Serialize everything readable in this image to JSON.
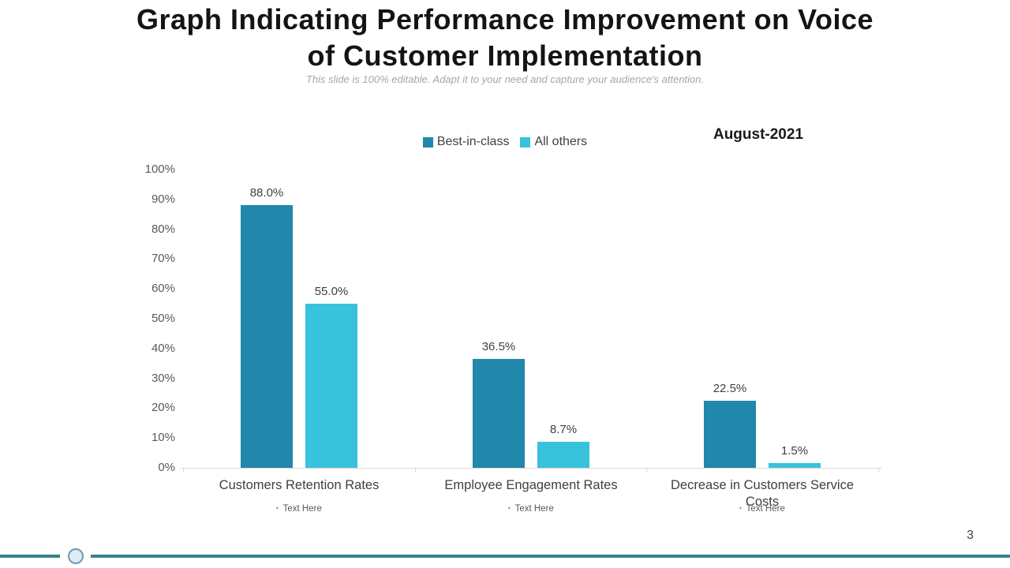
{
  "slide": {
    "title_lines": {
      "0": "Graph Indicating Performance Improvement on Voice",
      "1": "of Customer Implementation"
    },
    "subtitle": "This slide is 100% editable. Adapt it to your need and capture your audience's attention.",
    "page_number": "3"
  },
  "chart_data": {
    "type": "bar",
    "title": "August-2021",
    "categories": [
      "Customers Retention Rates",
      "Employee Engagement Rates",
      "Decrease in Customers Service Costs"
    ],
    "category_notes": [
      "Text Here",
      "Text Here",
      "Text Here"
    ],
    "note_bullet": "▪",
    "series": [
      {
        "name": "Best-in-class",
        "color": "#2187ab",
        "values": [
          88.0,
          36.5,
          22.5
        ]
      },
      {
        "name": "All others",
        "color": "#39c2dc",
        "values": [
          55.0,
          8.7,
          1.5
        ]
      }
    ],
    "value_labels": [
      [
        "88.0%",
        "36.5%",
        "22.5%"
      ],
      [
        "55.0%",
        "8.7%",
        "1.5%"
      ]
    ],
    "xlabel": "",
    "ylabel": "",
    "ylim": [
      0,
      100
    ],
    "ytick_step": 10,
    "ytick_suffix": "%",
    "grid": false,
    "legend_position": "top-center"
  },
  "colors": {
    "series_dark_teal": "#2187ab",
    "series_cyan": "#39c2dc",
    "footer_line_teal": "#38808f",
    "footer_circle_fill": "#dcedf5",
    "axis_gray": "#d9d9d9",
    "text_dark": "#141414",
    "text_body": "#404040",
    "text_muted": "#595959",
    "subtitle_gray": "#a6a6a6"
  }
}
